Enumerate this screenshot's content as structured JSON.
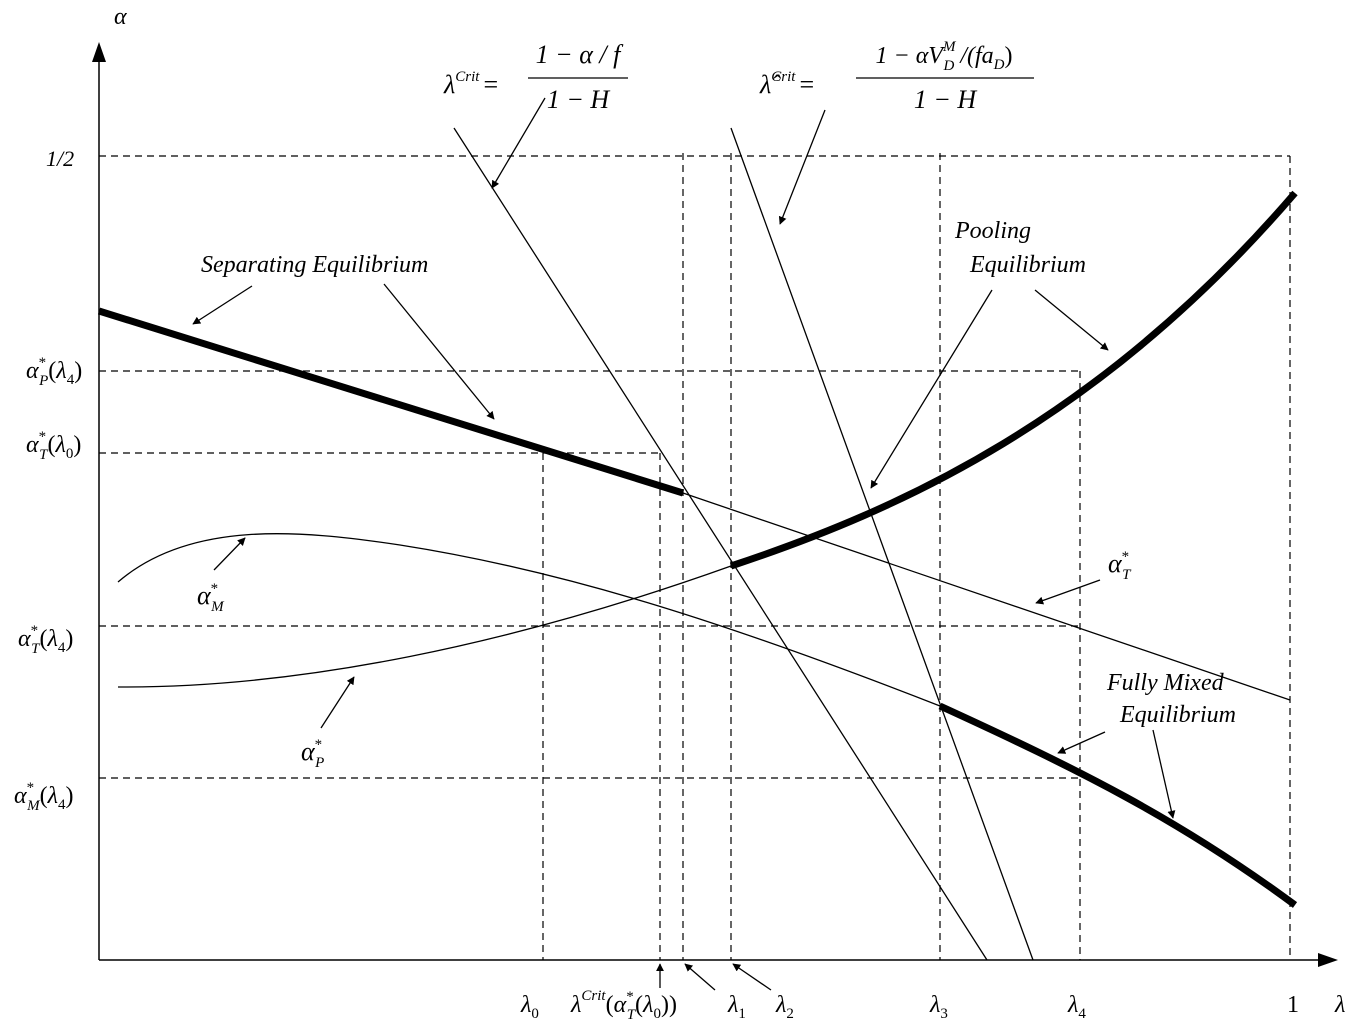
{
  "axes": {
    "y_label": "α",
    "x_label": "λ",
    "y_top_tick": "1/2",
    "x_end_tick": "1"
  },
  "y_ticks": [
    {
      "name": "alpha-p-star-lambda4",
      "base": "α",
      "sup": "*",
      "sub": "P",
      "arg": "λ",
      "argsub": "4"
    },
    {
      "name": "alpha-t-star-lambda0",
      "base": "α",
      "sup": "*",
      "sub": "T",
      "arg": "λ",
      "argsub": "0"
    },
    {
      "name": "alpha-t-star-lambda4",
      "base": "α",
      "sup": "*",
      "sub": "T",
      "arg": "λ",
      "argsub": "4"
    },
    {
      "name": "alpha-m-star-lambda4",
      "base": "α",
      "sup": "*",
      "sub": "M",
      "arg": "λ",
      "argsub": "4"
    }
  ],
  "x_ticks": [
    {
      "name": "lambda0",
      "base": "λ",
      "sub": "0"
    },
    {
      "name": "lambda1",
      "base": "λ",
      "sub": "1"
    },
    {
      "name": "lambda2",
      "base": "λ",
      "sub": "2"
    },
    {
      "name": "lambda3",
      "base": "λ",
      "sub": "3"
    },
    {
      "name": "lambda4",
      "base": "λ",
      "sub": "4"
    }
  ],
  "lambda_crit_tick": {
    "lambda": "λ",
    "crit": "Crit",
    "alpha": "α",
    "star": "*",
    "T": "T",
    "lambda_inner": "λ",
    "zero": "0"
  },
  "formulas": {
    "crit": {
      "lhs_symbol": "λ",
      "lhs_sup": "Crit",
      "numerator": "1 − α / f",
      "denominator": "1 − H"
    },
    "crit_hat": {
      "lhs_symbol": "λ̂",
      "lhs_sup": "Crit",
      "num_a": "1 − αV",
      "num_sub": "D",
      "num_sup": "M",
      "num_b": " /(fa",
      "num_b_sub": "D",
      "num_c": ")",
      "denominator": "1 − H"
    }
  },
  "annotations": {
    "separating": "Separating Equilibrium",
    "pooling_1": "Pooling",
    "pooling_2": "Equilibrium",
    "fully_mixed_1": "Fully Mixed",
    "fully_mixed_2": "Equilibrium"
  },
  "curve_labels": {
    "alpha_t": {
      "base": "α",
      "sup": "*",
      "sub": "T"
    },
    "alpha_m": {
      "base": "α",
      "sup": "*",
      "sub": "M"
    },
    "alpha_p": {
      "base": "α",
      "sup": "*",
      "sub": "P"
    }
  }
}
